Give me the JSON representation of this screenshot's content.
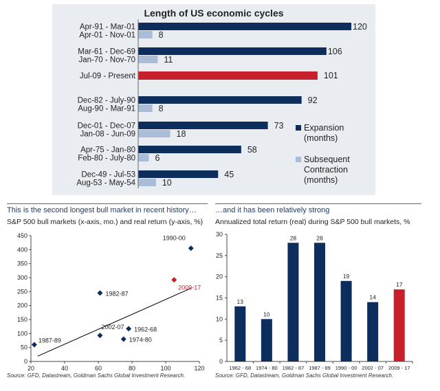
{
  "chart_data": [
    {
      "type": "bar",
      "title": "Length of US economic cycles",
      "legend": {
        "placement": "right",
        "entries": [
          "Expansion (months)",
          "Subsequent Contraction (months)"
        ]
      },
      "legend_lines": [
        {
          "series": "Expansion",
          "lines": [
            "Expansion",
            "(months)"
          ]
        },
        {
          "series": "Contraction",
          "lines": [
            "Subsequent",
            "Contraction",
            "(months)"
          ]
        }
      ],
      "xlim": [
        0,
        120
      ],
      "groups": [
        {
          "expansion_label": "Apr-91 - Mar-01",
          "expansion": 120,
          "contraction_label": "Apr-01 - Nov-01",
          "contraction": 8
        },
        {
          "expansion_label": "Mar-61 - Dec-69",
          "expansion": 106,
          "contraction_label": "Jan-70 - Nov-70",
          "contraction": 11
        },
        {
          "expansion_label": "Jul-09 - Present",
          "expansion": 101,
          "current": true
        },
        {
          "expansion_label": "Dec-82 - July-90",
          "expansion": 92,
          "contraction_label": "Aug-90 - Mar-91",
          "contraction": 8
        },
        {
          "expansion_label": "Dec-01 - Dec-07",
          "expansion": 73,
          "contraction_label": "Jan-08 - Jun-09",
          "contraction": 18
        },
        {
          "expansion_label": "Apr-75 - Jan-80",
          "expansion": 58,
          "contraction_label": "Feb-80 - July-80",
          "contraction": 6
        },
        {
          "expansion_label": "Dec-49 - Jul-53",
          "expansion": 45,
          "contraction_label": "Aug-53 - May-54",
          "contraction": 10
        }
      ],
      "colors": {
        "expansion": "#0d2d5c",
        "contraction": "#a9bdd6",
        "current": "#c8202b",
        "background": "#e9ecf1"
      }
    },
    {
      "type": "scatter",
      "title": "This is the second longest bull market in recent history…",
      "subtitle": "S&P 500 bull markets (x-axis, mo.) and real return (y-axis, %)",
      "xlim": [
        20,
        120
      ],
      "ylim": [
        0,
        450
      ],
      "xticks": [
        20,
        40,
        60,
        80,
        100,
        120
      ],
      "yticks": [
        0,
        50,
        100,
        150,
        200,
        250,
        300,
        350,
        400,
        450
      ],
      "points": [
        {
          "label": "1990-00",
          "x": 115,
          "y": 405
        },
        {
          "label": "2009-17",
          "x": 105,
          "y": 292,
          "highlight": true
        },
        {
          "label": "1982-87",
          "x": 61,
          "y": 245
        },
        {
          "label": "1962-68",
          "x": 78,
          "y": 117
        },
        {
          "label": "2002-07",
          "x": 61,
          "y": 93
        },
        {
          "label": "1974-80",
          "x": 75,
          "y": 80
        },
        {
          "label": "1987-89",
          "x": 22,
          "y": 60
        }
      ],
      "trendline": {
        "x": [
          24,
          115
        ],
        "y": [
          19,
          262
        ]
      },
      "colors": {
        "point": "#0d2d5c",
        "highlight": "#c8202b",
        "trend": "#000000"
      },
      "source": "Source: GFD, Datastream, Goldman Sachs Global Investment Research."
    },
    {
      "type": "bar",
      "title": "…and it has been relatively strong",
      "subtitle": "Annualized total return (real) during S&P 500 bull markets, %",
      "ylim": [
        0,
        30
      ],
      "yticks": [
        0,
        5,
        10,
        15,
        20,
        25,
        30
      ],
      "categories": [
        "1962 - 68",
        "1974 - 80",
        "1982 - 87",
        "1987 - 89",
        "1990 - 00",
        "2002 - 07",
        "2009 - 17"
      ],
      "values": [
        13,
        10,
        28,
        28,
        19,
        14,
        17
      ],
      "highlight_index": 6,
      "colors": {
        "bar": "#0d2d5c",
        "highlight": "#c8202b"
      },
      "source": "Source: GFD, Datastream, Goldman Sachs Global Investment Research."
    }
  ]
}
